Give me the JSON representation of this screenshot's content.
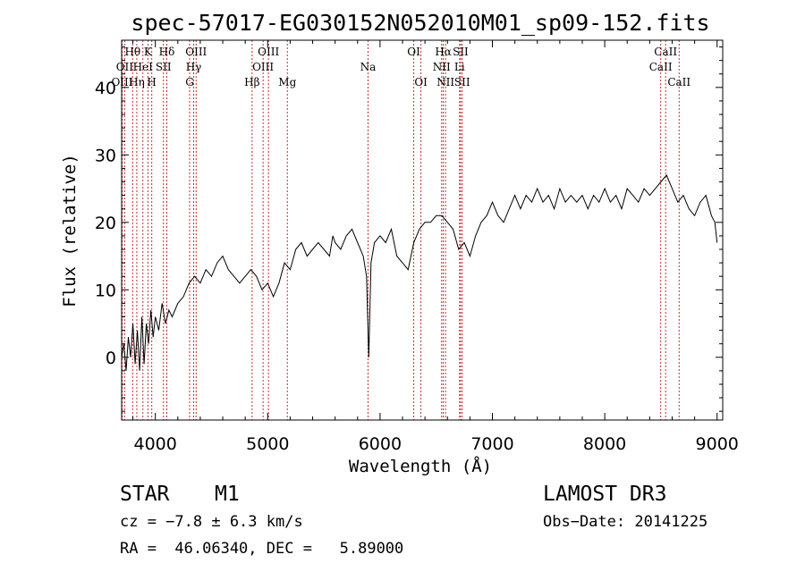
{
  "chart_data": {
    "type": "line",
    "title": "spec-57017-EG030152N052010M01_sp09-152.fits",
    "xlabel": "Wavelength (Å)",
    "ylabel": "Flux (relative)",
    "xlim": [
      3700,
      9050
    ],
    "ylim": [
      -9.3,
      47
    ],
    "x_ticks": [
      4000,
      5000,
      6000,
      7000,
      8000,
      9000
    ],
    "y_ticks": [
      0,
      10,
      20,
      30,
      40
    ],
    "series": [
      {
        "name": "flux",
        "x": [
          3700,
          3720,
          3740,
          3760,
          3780,
          3800,
          3820,
          3840,
          3860,
          3880,
          3900,
          3920,
          3940,
          3960,
          3980,
          4000,
          4030,
          4060,
          4090,
          4120,
          4150,
          4200,
          4250,
          4300,
          4350,
          4400,
          4450,
          4500,
          4550,
          4600,
          4650,
          4700,
          4750,
          4800,
          4850,
          4900,
          4950,
          5000,
          5050,
          5100,
          5150,
          5200,
          5250,
          5300,
          5350,
          5400,
          5450,
          5500,
          5550,
          5580,
          5600,
          5650,
          5700,
          5750,
          5800,
          5850,
          5880,
          5900,
          5920,
          5950,
          6000,
          6050,
          6100,
          6150,
          6200,
          6250,
          6300,
          6350,
          6400,
          6450,
          6500,
          6550,
          6600,
          6650,
          6700,
          6750,
          6800,
          6850,
          6900,
          6950,
          7000,
          7050,
          7100,
          7150,
          7200,
          7250,
          7300,
          7350,
          7400,
          7450,
          7500,
          7550,
          7600,
          7650,
          7700,
          7750,
          7800,
          7850,
          7900,
          7950,
          8000,
          8050,
          8100,
          8150,
          8200,
          8250,
          8300,
          8350,
          8400,
          8450,
          8500,
          8550,
          8600,
          8650,
          8700,
          8750,
          8800,
          8850,
          8900,
          8950,
          8980,
          9000
        ],
        "y": [
          0,
          2,
          -2,
          3,
          0,
          5,
          -1,
          4,
          -2,
          6,
          -1,
          5,
          2,
          7,
          3,
          6,
          4,
          8,
          5,
          7,
          6,
          8,
          9,
          11,
          12,
          11,
          13,
          12,
          14,
          15,
          13,
          12,
          11,
          12,
          13,
          12,
          10,
          11,
          9,
          11,
          14,
          13,
          16,
          17,
          15,
          16,
          17,
          16,
          15,
          18,
          17,
          16,
          18,
          19,
          17,
          15,
          12,
          0,
          14,
          17,
          18,
          17,
          19,
          15,
          14,
          13,
          17,
          19,
          20,
          20,
          21,
          21,
          20,
          19,
          16,
          17,
          15,
          18,
          20,
          21,
          23,
          21,
          20,
          22,
          24,
          22,
          24,
          23,
          25,
          23,
          24,
          22,
          25,
          23,
          24,
          23,
          24,
          22,
          24,
          23,
          25,
          23,
          24,
          22,
          25,
          24,
          23,
          25,
          24,
          25,
          26,
          27,
          25,
          23,
          24,
          22,
          21,
          23,
          24,
          21,
          20,
          17
        ]
      }
    ],
    "spectral_lines": [
      {
        "name": "Hθ",
        "wavelength": 3798,
        "row": 1
      },
      {
        "name": "OII",
        "wavelength": 3727,
        "row": 2
      },
      {
        "name": "OIII",
        "wavelength": 3704,
        "row": 3
      },
      {
        "name": "K",
        "wavelength": 3934,
        "row": 1
      },
      {
        "name": "HeI",
        "wavelength": 3889,
        "row": 2
      },
      {
        "name": "Hη",
        "wavelength": 3835,
        "row": 3
      },
      {
        "name": "SII",
        "wavelength": 4072,
        "row": 2
      },
      {
        "name": "H",
        "wavelength": 3968,
        "row": 3
      },
      {
        "name": "Hδ",
        "wavelength": 4102,
        "row": 1
      },
      {
        "name": "OIII",
        "wavelength": 4363,
        "row": 1
      },
      {
        "name": "Hγ",
        "wavelength": 4341,
        "row": 2
      },
      {
        "name": "G",
        "wavelength": 4305,
        "row": 3
      },
      {
        "name": "OIII",
        "wavelength": 5007,
        "row": 1
      },
      {
        "name": "OIII",
        "wavelength": 4959,
        "row": 2
      },
      {
        "name": "Hβ",
        "wavelength": 4861,
        "row": 3
      },
      {
        "name": "Mg",
        "wavelength": 5175,
        "row": 3
      },
      {
        "name": "Na",
        "wavelength": 5893,
        "row": 2
      },
      {
        "name": "OI",
        "wavelength": 6300,
        "row": 1
      },
      {
        "name": "OI",
        "wavelength": 6364,
        "row": 3
      },
      {
        "name": "Hα",
        "wavelength": 6563,
        "row": 1
      },
      {
        "name": "NII",
        "wavelength": 6548,
        "row": 2
      },
      {
        "name": "NII",
        "wavelength": 6583,
        "row": 3
      },
      {
        "name": "SII",
        "wavelength": 6717,
        "row": 1
      },
      {
        "name": "Li",
        "wavelength": 6708,
        "row": 2
      },
      {
        "name": "SII",
        "wavelength": 6731,
        "row": 3
      },
      {
        "name": "CaII",
        "wavelength": 8542,
        "row": 1
      },
      {
        "name": "CaII",
        "wavelength": 8498,
        "row": 2
      },
      {
        "name": "CaII",
        "wavelength": 8662,
        "row": 3
      }
    ]
  },
  "footer": {
    "class_label": "STAR",
    "subclass": "M1",
    "survey": "LAMOST DR3",
    "cz": "cz = −7.8 ± 6.3 km/s",
    "obs_date": "Obs−Date: 20141225",
    "coords": "RA =  46.06340, DEC =   5.89000"
  },
  "colors": {
    "line_marker": "#c03030",
    "spectrum": "#000000"
  }
}
